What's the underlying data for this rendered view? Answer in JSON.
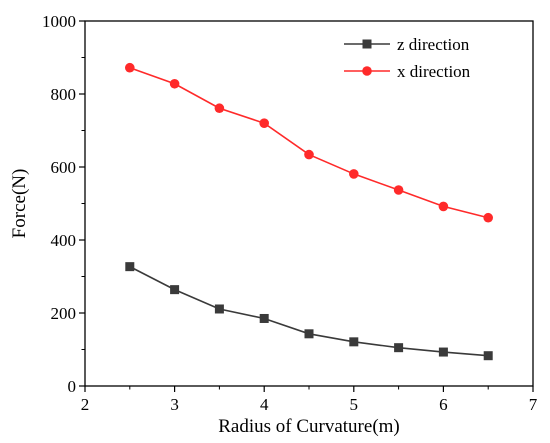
{
  "chart_data": {
    "type": "line",
    "title": "",
    "xlabel": "Radius of Curvature(m)",
    "ylabel": "Force(N)",
    "xlim": [
      2,
      7
    ],
    "ylim": [
      0,
      1000
    ],
    "xticks": [
      2,
      3,
      4,
      5,
      6,
      7
    ],
    "yticks": [
      0,
      200,
      400,
      600,
      800,
      1000
    ],
    "grid": false,
    "legend": "top-right",
    "x": [
      2.5,
      3,
      3.5,
      4,
      4.5,
      5,
      5.5,
      6,
      6.5
    ],
    "series": [
      {
        "name": "z direction",
        "color": "#3a3a3a",
        "marker": "square",
        "values": [
          327,
          264,
          211,
          185,
          143,
          121,
          105,
          93,
          83
        ]
      },
      {
        "name": "x direction",
        "color": "#ff2a2a",
        "marker": "circle",
        "values": [
          872,
          828,
          761,
          720,
          634,
          581,
          537,
          492,
          461
        ]
      }
    ]
  }
}
